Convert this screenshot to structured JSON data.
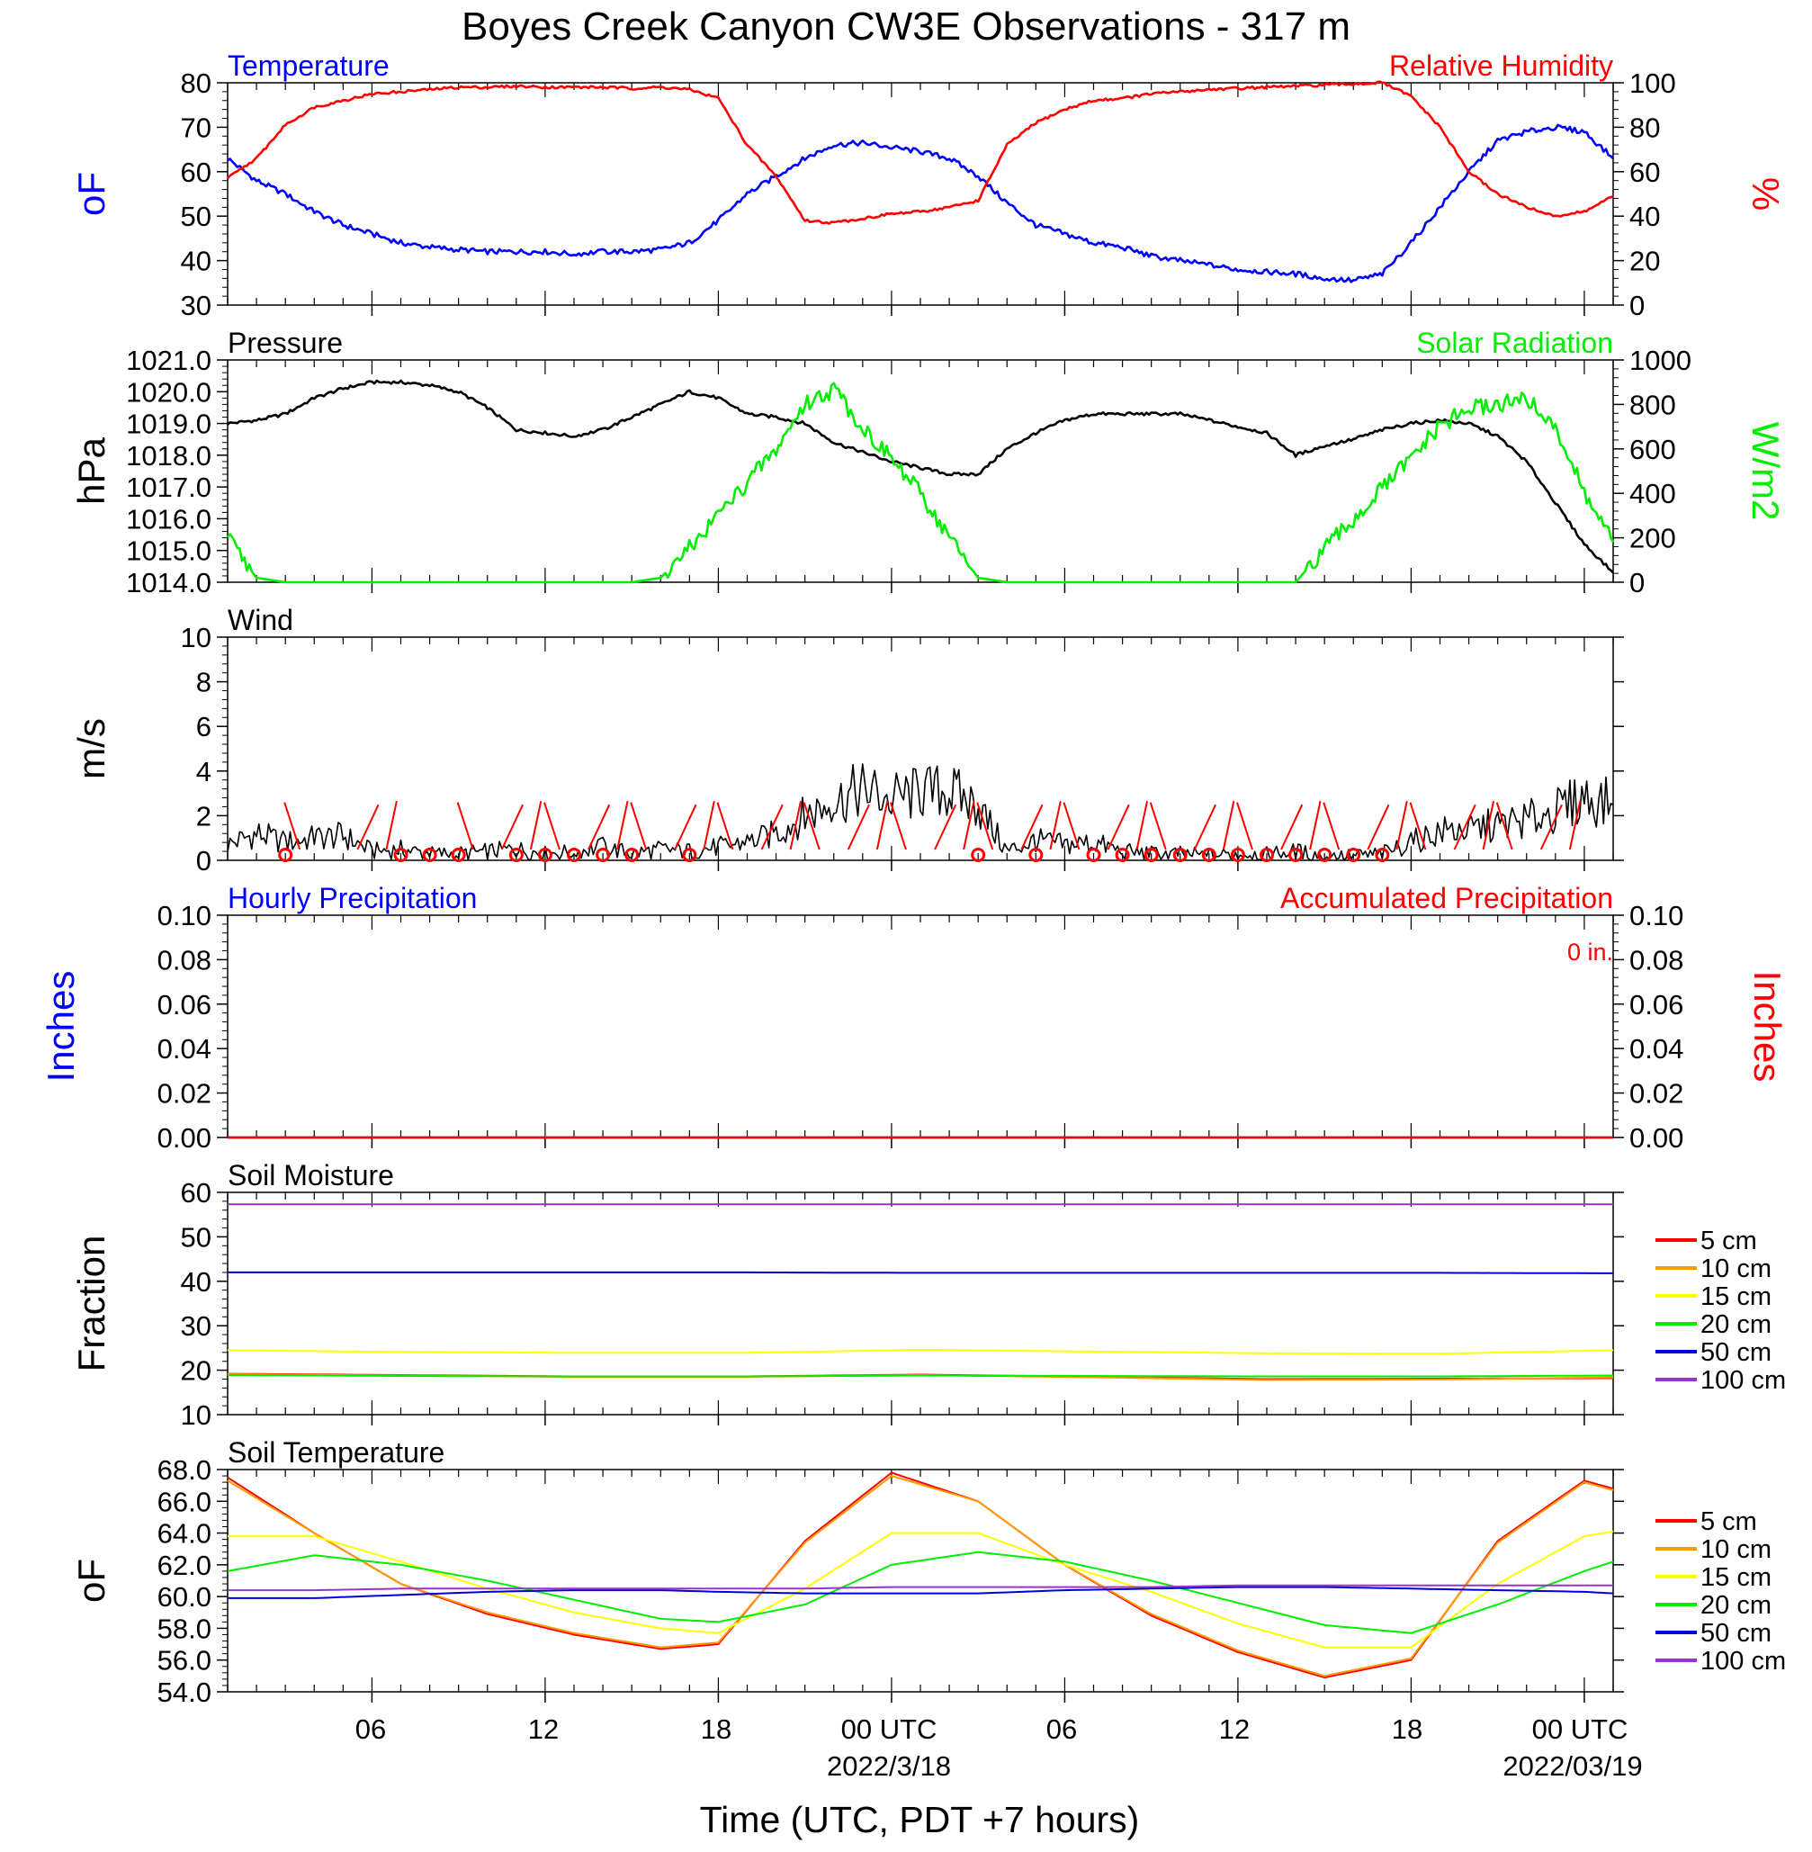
{
  "title": "Boyes Creek Canyon CW3E Observations - 317 m",
  "x_axis": {
    "ticks": [
      "06",
      "12",
      "18",
      "00 UTC",
      "06",
      "12",
      "18",
      "00 UTC"
    ],
    "dates": [
      "2022/3/18",
      "2022/03/19"
    ],
    "label": "Time (UTC, PDT +7 hours)"
  },
  "colors": {
    "temperature": "#0000ff",
    "humidity": "#ff0000",
    "pressure": "#000000",
    "solar": "#00ee00",
    "wind": "#000000",
    "barb": "#ff0000",
    "5cm": "#ff0000",
    "10cm": "#ff9900",
    "15cm": "#ffff00",
    "20cm": "#00ee00",
    "50cm": "#0000dd",
    "100cm": "#9933cc"
  },
  "chart_data": [
    {
      "type": "line",
      "panel": "temperature-humidity",
      "left_title": "Temperature",
      "right_title": "Relative Humidity",
      "ylabel_left": "oF",
      "ylabel_right": "%",
      "ylim_left": [
        30,
        80
      ],
      "ylim_right": [
        0,
        100
      ],
      "yticks_left": [
        "80",
        "70",
        "60",
        "50",
        "40",
        "30"
      ],
      "yticks_right": [
        "100",
        "80",
        "60",
        "40",
        "20",
        "0"
      ],
      "x_hours_since_start": [
        0,
        1,
        2,
        3,
        4,
        5,
        6,
        7,
        8,
        9,
        10,
        11,
        12,
        13,
        14,
        15,
        16,
        17,
        18,
        19,
        20,
        21,
        22,
        23,
        24,
        25,
        26,
        27,
        28,
        29,
        30,
        31,
        32,
        33,
        34,
        35,
        36,
        37,
        38,
        39,
        40,
        41,
        42,
        43,
        44,
        45,
        46,
        47,
        48
      ],
      "series": [
        {
          "name": "Temperature",
          "axis": "left",
          "values": [
            63,
            58,
            55,
            51,
            48,
            46,
            44,
            43,
            42.5,
            42,
            42,
            42,
            41.5,
            42,
            42,
            42.5,
            44,
            49,
            55,
            59,
            63,
            66,
            66.5,
            65.5,
            64.5,
            63,
            59,
            53,
            48,
            46,
            44,
            43,
            41,
            40,
            39,
            38,
            37.5,
            37,
            36,
            35.5,
            37,
            44,
            52,
            60,
            67,
            69,
            70,
            69,
            63
          ]
        },
        {
          "name": "Relative Humidity",
          "axis": "right",
          "values": [
            57,
            66,
            81,
            89,
            92,
            95,
            96,
            97,
            98,
            98,
            98.5,
            98,
            98,
            98,
            97.5,
            98,
            97,
            93,
            72,
            58,
            38,
            37,
            39,
            41,
            42,
            44,
            47,
            72,
            82,
            88,
            92,
            93,
            95,
            96,
            97,
            97.5,
            98,
            98.5,
            99,
            99.5,
            100,
            94,
            80,
            60,
            50,
            44,
            40,
            42,
            49
          ]
        }
      ]
    },
    {
      "type": "line",
      "panel": "pressure-solar",
      "left_title": "Pressure",
      "right_title": "Solar Radiation",
      "ylabel_left": "hPa",
      "ylabel_right": "W/m2",
      "ylim_left": [
        1014,
        1021
      ],
      "ylim_right": [
        0,
        1000
      ],
      "yticks_left": [
        "1021.0",
        "1020.0",
        "1019.0",
        "1018.0",
        "1017.0",
        "1016.0",
        "1015.0",
        "1014.0"
      ],
      "yticks_right": [
        "1000",
        "800",
        "600",
        "400",
        "200",
        "0"
      ],
      "x_hours_since_start": [
        0,
        1,
        2,
        3,
        4,
        5,
        6,
        7,
        8,
        9,
        10,
        11,
        12,
        13,
        14,
        15,
        16,
        17,
        18,
        19,
        20,
        21,
        22,
        23,
        24,
        25,
        26,
        27,
        28,
        29,
        30,
        31,
        32,
        33,
        34,
        35,
        36,
        37,
        38,
        39,
        40,
        41,
        42,
        43,
        44,
        45,
        46,
        47,
        48
      ],
      "series": [
        {
          "name": "Pressure",
          "axis": "left",
          "values": [
            1019.0,
            1019.1,
            1019.3,
            1019.8,
            1020.1,
            1020.3,
            1020.3,
            1020.2,
            1020.0,
            1019.5,
            1018.8,
            1018.7,
            1018.6,
            1018.8,
            1019.2,
            1019.6,
            1020.0,
            1019.8,
            1019.3,
            1019.2,
            1019.0,
            1018.4,
            1018.1,
            1017.8,
            1017.6,
            1017.4,
            1017.4,
            1018.2,
            1018.7,
            1019.1,
            1019.3,
            1019.3,
            1019.3,
            1019.3,
            1019.1,
            1018.9,
            1018.7,
            1018.0,
            1018.3,
            1018.5,
            1018.8,
            1019.0,
            1019.1,
            1019.0,
            1018.6,
            1017.8,
            1016.5,
            1015.2,
            1014.3
          ]
        },
        {
          "name": "Solar Radiation",
          "axis": "right",
          "values": [
            200,
            20,
            0,
            0,
            0,
            0,
            0,
            0,
            0,
            0,
            0,
            0,
            0,
            0,
            0,
            20,
            150,
            300,
            450,
            600,
            800,
            870,
            700,
            550,
            400,
            200,
            20,
            0,
            0,
            0,
            0,
            0,
            0,
            0,
            0,
            0,
            0,
            0,
            150,
            280,
            420,
            560,
            700,
            780,
            800,
            820,
            700,
            400,
            180
          ]
        }
      ]
    },
    {
      "type": "line",
      "panel": "wind",
      "left_title": "Wind",
      "ylabel_left": "m/s",
      "ylim_left": [
        0,
        10
      ],
      "yticks_left": [
        "10",
        "8",
        "6",
        "4",
        "2",
        "0"
      ],
      "x_hours_since_start": [
        0,
        1,
        2,
        3,
        4,
        5,
        6,
        7,
        8,
        9,
        10,
        11,
        12,
        13,
        14,
        15,
        16,
        17,
        18,
        19,
        20,
        21,
        22,
        23,
        24,
        25,
        26,
        27,
        28,
        29,
        30,
        31,
        32,
        33,
        34,
        35,
        36,
        37,
        38,
        39,
        40,
        41,
        42,
        43,
        44,
        45,
        46,
        47,
        48
      ],
      "series": [
        {
          "name": "Wind",
          "axis": "left",
          "values": [
            0.7,
            1.2,
            0.8,
            1.0,
            1.1,
            0.4,
            0.5,
            0.3,
            0.3,
            0.4,
            0.5,
            0.3,
            0.4,
            0.6,
            0.3,
            0.5,
            0.4,
            0.6,
            0.8,
            1.2,
            2.0,
            2.6,
            3.2,
            2.8,
            3.0,
            3.1,
            2.4,
            0.4,
            0.9,
            0.7,
            0.8,
            0.4,
            0.3,
            0.3,
            0.2,
            0.3,
            0.3,
            0.4,
            0.2,
            0.2,
            0.3,
            0.8,
            1.3,
            1.4,
            1.6,
            1.8,
            2.2,
            2.8,
            2.5
          ]
        }
      ],
      "barb_hours": [
        2,
        4,
        5,
        8,
        9,
        10,
        11,
        12,
        13,
        14,
        15,
        16,
        17,
        18,
        19,
        20,
        21,
        22,
        23,
        24,
        25,
        26,
        27,
        28,
        29,
        30,
        31,
        32,
        33,
        34,
        35,
        36,
        37,
        38,
        39,
        40,
        41,
        42,
        43,
        44,
        45,
        46
      ],
      "calm_hours": [
        2,
        6,
        7,
        8,
        10,
        11,
        12,
        13,
        14,
        16,
        26,
        28,
        30,
        31,
        32,
        33,
        34,
        35,
        36,
        37,
        38,
        39,
        40
      ]
    },
    {
      "type": "line",
      "panel": "precipitation",
      "left_title": "Hourly Precipitation",
      "right_title": "Accumulated Precipitation",
      "annotation": "0 in.",
      "ylabel_left": "Inches",
      "ylabel_right": "Inches",
      "ylim_left": [
        0,
        0.1
      ],
      "ylim_right": [
        0,
        0.1
      ],
      "yticks_left": [
        "0.10",
        "0.08",
        "0.06",
        "0.04",
        "0.02",
        "0.00"
      ],
      "yticks_right": [
        "0.10",
        "0.08",
        "0.06",
        "0.04",
        "0.02",
        "0.00"
      ],
      "x_hours_since_start": [
        0,
        48
      ],
      "series": [
        {
          "name": "Hourly Precipitation",
          "axis": "left",
          "values": [
            0,
            0
          ]
        },
        {
          "name": "Accumulated Precipitation",
          "axis": "right",
          "values": [
            0,
            0
          ]
        }
      ]
    },
    {
      "type": "line",
      "panel": "soil-moisture",
      "left_title": "Soil Moisture",
      "ylabel_left": "Fraction",
      "ylim_left": [
        10,
        60
      ],
      "yticks_left": [
        "60",
        "50",
        "40",
        "30",
        "20",
        "10"
      ],
      "x_hours_since_start": [
        0,
        6,
        12,
        18,
        24,
        30,
        36,
        42,
        48
      ],
      "legend": [
        "5 cm",
        "10 cm",
        "15 cm",
        "20 cm",
        "50 cm",
        "100 cm"
      ],
      "legend_position": "right",
      "series": [
        {
          "name": "5 cm",
          "values": [
            19.2,
            18.9,
            18.6,
            18.6,
            19.0,
            18.5,
            18.0,
            18.1,
            18.2
          ]
        },
        {
          "name": "10 cm",
          "values": [
            19.1,
            18.8,
            18.5,
            18.5,
            18.9,
            18.4,
            17.8,
            17.9,
            18.4
          ]
        },
        {
          "name": "15 cm",
          "values": [
            24.5,
            24.1,
            23.9,
            23.9,
            24.6,
            24.2,
            23.8,
            23.7,
            24.5
          ]
        },
        {
          "name": "20 cm",
          "values": [
            18.9,
            18.7,
            18.6,
            18.6,
            18.8,
            18.7,
            18.6,
            18.6,
            18.8
          ]
        },
        {
          "name": "50 cm",
          "values": [
            42.0,
            42.0,
            42.0,
            42.0,
            41.9,
            41.9,
            41.9,
            41.9,
            41.8
          ]
        },
        {
          "name": "100 cm",
          "values": [
            57.3,
            57.3,
            57.3,
            57.3,
            57.3,
            57.3,
            57.3,
            57.3,
            57.3
          ]
        }
      ]
    },
    {
      "type": "line",
      "panel": "soil-temperature",
      "left_title": "Soil Temperature",
      "ylabel_left": "oF",
      "ylim_left": [
        54,
        68
      ],
      "yticks_left": [
        "68.0",
        "66.0",
        "64.0",
        "62.0",
        "60.0",
        "58.0",
        "56.0",
        "54.0"
      ],
      "x_hours_since_start": [
        0,
        3,
        6,
        9,
        12,
        15,
        17,
        20,
        23,
        26,
        29,
        32,
        35,
        38,
        41,
        44,
        47,
        48
      ],
      "legend": [
        "5 cm",
        "10 cm",
        "15 cm",
        "20 cm",
        "50 cm",
        "100 cm"
      ],
      "legend_position": "right",
      "series": [
        {
          "name": "5 cm",
          "values": [
            67.5,
            64.0,
            60.8,
            58.9,
            57.6,
            56.7,
            57.0,
            63.5,
            67.8,
            66.0,
            62.0,
            58.8,
            56.5,
            54.9,
            56.0,
            63.5,
            67.3,
            66.8
          ]
        },
        {
          "name": "10 cm",
          "values": [
            67.3,
            64.0,
            60.8,
            59.0,
            57.7,
            56.8,
            57.1,
            63.4,
            67.6,
            66.0,
            62.0,
            58.9,
            56.6,
            55.0,
            56.1,
            63.4,
            67.2,
            66.7
          ]
        },
        {
          "name": "15 cm",
          "values": [
            63.8,
            63.8,
            62.2,
            60.5,
            59.0,
            58.0,
            57.7,
            60.5,
            64.0,
            64.0,
            62.0,
            60.3,
            58.3,
            56.8,
            56.8,
            60.8,
            63.8,
            64.1
          ]
        },
        {
          "name": "20 cm",
          "values": [
            61.6,
            62.6,
            62.0,
            61.0,
            59.8,
            58.6,
            58.4,
            59.5,
            62.0,
            62.8,
            62.2,
            61.0,
            59.6,
            58.2,
            57.7,
            59.5,
            61.6,
            62.2
          ]
        },
        {
          "name": "50 cm",
          "values": [
            59.9,
            59.9,
            60.1,
            60.3,
            60.4,
            60.4,
            60.3,
            60.2,
            60.2,
            60.2,
            60.4,
            60.5,
            60.6,
            60.6,
            60.5,
            60.4,
            60.3,
            60.2
          ]
        },
        {
          "name": "100 cm",
          "values": [
            60.4,
            60.4,
            60.5,
            60.5,
            60.5,
            60.5,
            60.5,
            60.5,
            60.6,
            60.6,
            60.6,
            60.6,
            60.7,
            60.7,
            60.7,
            60.7,
            60.7,
            60.7
          ]
        }
      ]
    }
  ]
}
